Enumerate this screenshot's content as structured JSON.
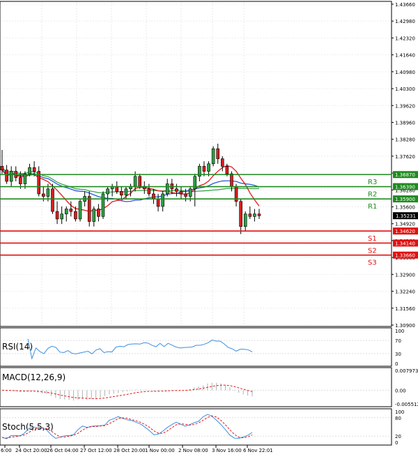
{
  "chart_data": [
    {
      "type": "candlestick",
      "title": "",
      "price_axis_ticks": [
        "1.43660",
        "1.42980",
        "1.42320",
        "1.41640",
        "1.40980",
        "1.40300",
        "1.39620",
        "1.38960",
        "1.38280",
        "1.37620",
        "1.36950",
        "1.36280",
        "1.35600",
        "1.34920",
        "1.34260",
        "1.33580",
        "1.32900",
        "1.32240",
        "1.31560",
        "1.30900"
      ],
      "ylim": [
        1.309,
        1.4366
      ],
      "x_tick_labels": [
        "6:00",
        "24 Oct 20:00",
        "26 Oct 04:00",
        "27 Oct 12:00",
        "28 Oct 20:00",
        "1 Nov 00:00",
        "2 Nov 08:00",
        "3 Nov 16:00",
        "6 Nov 22:01"
      ],
      "current_price": "1.35231",
      "levels": [
        {
          "name": "R3",
          "value": 1.3687,
          "label": "1.36870",
          "color": "#1f8a1f"
        },
        {
          "name": "R2",
          "value": 1.3639,
          "label": "1.36390",
          "color": "#1f8a1f"
        },
        {
          "name": "R1",
          "value": 1.359,
          "label": "1.35900",
          "color": "#1f8a1f"
        },
        {
          "name": "S1",
          "value": 1.3462,
          "label": "1.34620",
          "color": "#e01010"
        },
        {
          "name": "S2",
          "value": 1.3414,
          "label": "1.34140",
          "color": "#e01010"
        },
        {
          "name": "S3",
          "value": 1.3366,
          "label": "1.33660",
          "color": "#e01010"
        }
      ],
      "candles": [
        [
          1.372,
          1.3785,
          1.369,
          1.3705
        ],
        [
          1.3705,
          1.3725,
          1.365,
          1.366
        ],
        [
          1.366,
          1.372,
          1.364,
          1.37
        ],
        [
          1.37,
          1.372,
          1.366,
          1.3675
        ],
        [
          1.3675,
          1.37,
          1.363,
          1.365
        ],
        [
          1.365,
          1.37,
          1.363,
          1.369
        ],
        [
          1.369,
          1.373,
          1.368,
          1.3715
        ],
        [
          1.3715,
          1.374,
          1.368,
          1.37
        ],
        [
          1.37,
          1.372,
          1.36,
          1.361
        ],
        [
          1.361,
          1.364,
          1.358,
          1.36
        ],
        [
          1.36,
          1.365,
          1.358,
          1.363
        ],
        [
          1.363,
          1.365,
          1.353,
          1.354
        ],
        [
          1.354,
          1.358,
          1.349,
          1.351
        ],
        [
          1.351,
          1.356,
          1.349,
          1.353
        ],
        [
          1.353,
          1.356,
          1.35,
          1.355
        ],
        [
          1.355,
          1.358,
          1.352,
          1.354
        ],
        [
          1.354,
          1.356,
          1.35,
          1.351
        ],
        [
          1.351,
          1.359,
          1.35,
          1.358
        ],
        [
          1.358,
          1.362,
          1.356,
          1.36
        ],
        [
          1.36,
          1.362,
          1.348,
          1.35
        ],
        [
          1.35,
          1.356,
          1.348,
          1.355
        ],
        [
          1.355,
          1.357,
          1.35,
          1.352
        ],
        [
          1.352,
          1.362,
          1.351,
          1.361
        ],
        [
          1.361,
          1.364,
          1.358,
          1.363
        ],
        [
          1.363,
          1.365,
          1.36,
          1.364
        ],
        [
          1.364,
          1.366,
          1.361,
          1.362
        ],
        [
          1.362,
          1.364,
          1.359,
          1.3605
        ],
        [
          1.3605,
          1.364,
          1.359,
          1.363
        ],
        [
          1.363,
          1.365,
          1.36,
          1.364
        ],
        [
          1.364,
          1.37,
          1.362,
          1.368
        ],
        [
          1.368,
          1.369,
          1.363,
          1.364
        ],
        [
          1.364,
          1.366,
          1.361,
          1.363
        ],
        [
          1.363,
          1.365,
          1.36,
          1.361
        ],
        [
          1.361,
          1.363,
          1.357,
          1.359
        ],
        [
          1.359,
          1.361,
          1.354,
          1.356
        ],
        [
          1.356,
          1.362,
          1.354,
          1.361
        ],
        [
          1.361,
          1.367,
          1.36,
          1.365
        ],
        [
          1.365,
          1.367,
          1.361,
          1.363
        ],
        [
          1.363,
          1.365,
          1.36,
          1.362
        ],
        [
          1.362,
          1.364,
          1.359,
          1.361
        ],
        [
          1.361,
          1.363,
          1.358,
          1.36
        ],
        [
          1.36,
          1.364,
          1.358,
          1.363
        ],
        [
          1.363,
          1.369,
          1.356,
          1.368
        ],
        [
          1.368,
          1.373,
          1.366,
          1.372
        ],
        [
          1.372,
          1.374,
          1.368,
          1.37
        ],
        [
          1.37,
          1.374,
          1.368,
          1.373
        ],
        [
          1.373,
          1.38,
          1.372,
          1.379
        ],
        [
          1.379,
          1.381,
          1.373,
          1.375
        ],
        [
          1.375,
          1.376,
          1.37,
          1.372
        ],
        [
          1.372,
          1.373,
          1.368,
          1.369
        ],
        [
          1.369,
          1.37,
          1.362,
          1.364
        ],
        [
          1.364,
          1.365,
          1.356,
          1.358
        ],
        [
          1.358,
          1.359,
          1.345,
          1.348
        ],
        [
          1.348,
          1.354,
          1.346,
          1.353
        ],
        [
          1.353,
          1.356,
          1.351,
          1.352
        ],
        [
          1.352,
          1.355,
          1.35,
          1.353
        ],
        [
          1.353,
          1.355,
          1.351,
          1.3523
        ]
      ],
      "indicators": [
        {
          "name": "RSI(14)",
          "levels": [
            "100",
            "70",
            "30",
            "0"
          ]
        },
        {
          "name": "MACD(12,26,9)",
          "levels": [
            "0.007973",
            "0.00",
            "-0.005512"
          ]
        },
        {
          "name": "Stoch(5,5,3)",
          "levels": [
            "100",
            "80",
            "20",
            "0"
          ]
        }
      ],
      "colors": {
        "bull": "#2ea043",
        "bear": "#d81e1e",
        "ma_fast": "#e01a1a",
        "ma_mid": "#2b58d8",
        "ma_slow": "#3aa84a",
        "rsi": "#3d8fe0",
        "stoch_k": "#3d8fe0",
        "stoch_d": "#e01a1a"
      }
    }
  ]
}
